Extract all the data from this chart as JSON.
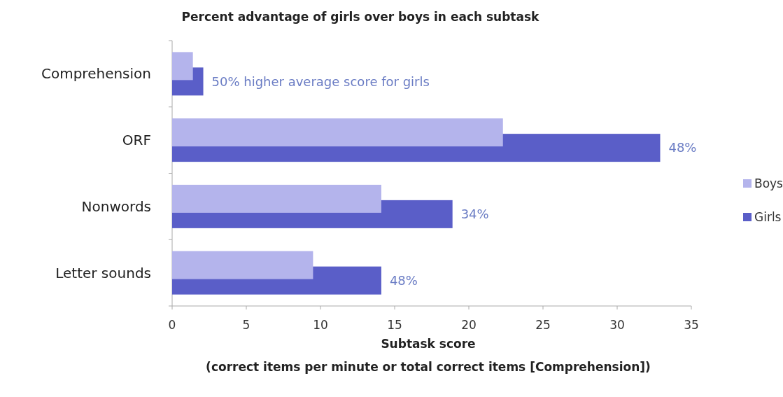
{
  "chart_data": {
    "type": "bar",
    "orientation": "horizontal",
    "title": "Percent advantage of girls over boys in each subtask",
    "xlabel": "Subtask score\n(correct items per minute or total correct items [Comprehension])",
    "categories": [
      "Comprehension",
      "ORF",
      "Nonwords",
      "Letter sounds"
    ],
    "series": [
      {
        "name": "Boys",
        "color": "#b4b4ec",
        "values": [
          1.4,
          22.3,
          14.1,
          9.5
        ]
      },
      {
        "name": "Girls",
        "color": "#5a5ec8",
        "values": [
          2.1,
          32.9,
          18.9,
          14.1
        ]
      }
    ],
    "xlim": [
      0,
      35
    ],
    "xticks": [
      0,
      5,
      10,
      15,
      20,
      25,
      30,
      35
    ],
    "legend": "right",
    "grid": false,
    "annotations": [
      {
        "text": "50% higher average score for girls",
        "x": 2.1,
        "y": "Comprehension"
      },
      {
        "text": "48%",
        "x": 32.9,
        "y": "ORF"
      },
      {
        "text": "34%",
        "x": 18.9,
        "y": "Nonwords"
      },
      {
        "text": "48%",
        "x": 14.1,
        "y": "Letter sounds"
      }
    ]
  }
}
